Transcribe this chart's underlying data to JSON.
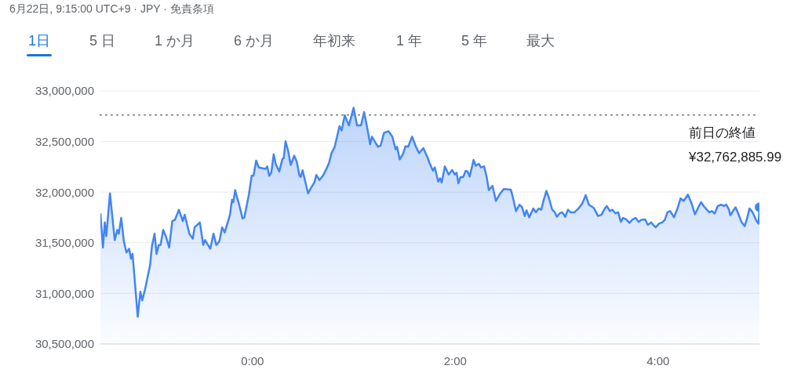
{
  "chart_data": {
    "type": "area",
    "title": "6月22日, 9:15:00 UTC+9 · JPY · 免責条項",
    "annotations": [
      "1日",
      "5 日",
      "1 か月",
      "6 か月",
      "年初来",
      "1 年",
      "5 年",
      "最大"
    ],
    "xlim": [
      -1.5,
      5.0
    ],
    "xticks": [
      {
        "value": 0,
        "label": "0:00"
      },
      {
        "value": 2,
        "label": "2:00"
      },
      {
        "value": 4,
        "label": "4:00"
      }
    ],
    "ylim": [
      30500000,
      33000000
    ],
    "yticks": [
      {
        "value": 30500000,
        "label": "30,500,000"
      },
      {
        "value": 31000000,
        "label": "31,000,000"
      },
      {
        "value": 31500000,
        "label": "31,500,000"
      },
      {
        "value": 32000000,
        "label": "32,000,000"
      },
      {
        "value": 32500000,
        "label": "32,500,000"
      },
      {
        "value": 33000000,
        "label": "33,000,000"
      }
    ],
    "grid": "y",
    "legend": false,
    "marker": "none",
    "line_style": "solid",
    "ref_lines": [
      {
        "axis": "y",
        "value": 32762885.99,
        "label": "前日の終値 ¥32,762,885.99",
        "color": "#80868b",
        "line_style": "dotted"
      }
    ],
    "series": [
      {
        "color": "#4285f4",
        "x": [
          -1.5,
          -1.475,
          -1.457,
          -1.442,
          -1.406,
          -1.359,
          -1.333,
          -1.318,
          -1.295,
          -1.269,
          -1.243,
          -1.217,
          -1.199,
          -1.183,
          -1.132,
          -1.106,
          -1.088,
          -1.062,
          -1.01,
          -0.992,
          -0.966,
          -0.946,
          -0.925,
          -0.907,
          -0.881,
          -0.855,
          -0.822,
          -0.791,
          -0.765,
          -0.726,
          -0.687,
          -0.669,
          -0.623,
          -0.589,
          -0.571,
          -0.519,
          -0.486,
          -0.468,
          -0.416,
          -0.385,
          -0.357,
          -0.326,
          -0.3,
          -0.274,
          -0.222,
          -0.202,
          -0.189,
          -0.171,
          -0.15,
          -0.132,
          -0.098,
          -0.08,
          -0.036,
          -0.008,
          0.01,
          0.036,
          0.062,
          0.101,
          0.127,
          0.145,
          0.165,
          0.186,
          0.209,
          0.23,
          0.264,
          0.295,
          0.308,
          0.326,
          0.351,
          0.377,
          0.411,
          0.437,
          0.463,
          0.475,
          0.494,
          0.548,
          0.574,
          0.61,
          0.63,
          0.661,
          0.695,
          0.729,
          0.754,
          0.78,
          0.811,
          0.858,
          0.879,
          0.91,
          0.951,
          0.997,
          1.031,
          1.07,
          1.101,
          1.134,
          1.16,
          1.178,
          1.238,
          1.264,
          1.297,
          1.341,
          1.38,
          1.411,
          1.426,
          1.452,
          1.483,
          1.509,
          1.535,
          1.574,
          1.612,
          1.643,
          1.685,
          1.729,
          1.747,
          1.78,
          1.798,
          1.832,
          1.85,
          1.866,
          1.897,
          1.935,
          1.969,
          1.995,
          2.013,
          2.031,
          2.052,
          2.078,
          2.103,
          2.121,
          2.142,
          2.181,
          2.202,
          2.233,
          2.253,
          2.284,
          2.31,
          2.331,
          2.367,
          2.401,
          2.439,
          2.478,
          2.548,
          2.568,
          2.599,
          2.633,
          2.659,
          2.685,
          2.703,
          2.729,
          2.77,
          2.796,
          2.822,
          2.848,
          2.873,
          2.899,
          2.925,
          2.956,
          2.982,
          3.003,
          3.028,
          3.054,
          3.085,
          3.111,
          3.137,
          3.176,
          3.215,
          3.253,
          3.287,
          3.318,
          3.357,
          3.37,
          3.408,
          3.442,
          3.468,
          3.494,
          3.525,
          3.55,
          3.581,
          3.607,
          3.633,
          3.654,
          3.685,
          3.718,
          3.744,
          3.778,
          3.809,
          3.835,
          3.873,
          3.899,
          3.933,
          3.951,
          3.977,
          4.01,
          4.041,
          4.067,
          4.093,
          4.119,
          4.158,
          4.196,
          4.222,
          4.253,
          4.295,
          4.331,
          4.364,
          4.398,
          4.424,
          4.455,
          4.481,
          4.506,
          4.532,
          4.558,
          4.589,
          4.623,
          4.649,
          4.674,
          4.7,
          4.713,
          4.739,
          4.765,
          4.791,
          4.822,
          4.855,
          4.881,
          4.902,
          4.933,
          4.972,
          4.992,
          5.0
        ],
        "values": [
          31789000,
          31453000,
          31701000,
          31565000,
          31988000,
          31527000,
          31627000,
          31590000,
          31746000,
          31515000,
          31403000,
          31440000,
          31341000,
          31390000,
          30769000,
          31017000,
          30930000,
          31030000,
          31279000,
          31465000,
          31590000,
          31390000,
          31478000,
          31478000,
          31627000,
          31565000,
          31453000,
          31714000,
          31726000,
          31826000,
          31714000,
          31776000,
          31590000,
          31540000,
          31652000,
          31701000,
          31478000,
          31527000,
          31440000,
          31590000,
          31478000,
          31515000,
          31652000,
          31602000,
          31776000,
          31925000,
          31901000,
          32020000,
          31938000,
          31876000,
          31739000,
          31751000,
          31975000,
          32162000,
          32162000,
          32311000,
          32244000,
          32236000,
          32229000,
          32254000,
          32162000,
          32194000,
          32373000,
          32274000,
          32204000,
          32328000,
          32336000,
          32502000,
          32410000,
          32269000,
          32361000,
          32299000,
          32162000,
          32149000,
          32216000,
          31988000,
          32037000,
          32095000,
          32169000,
          32119000,
          32162000,
          32229000,
          32286000,
          32386000,
          32448000,
          32652000,
          32609000,
          32759000,
          32659000,
          32833000,
          32659000,
          32659000,
          32791000,
          32622000,
          32473000,
          32547000,
          32448000,
          32460000,
          32585000,
          32602000,
          32547000,
          32423000,
          32448000,
          32323000,
          32373000,
          32453000,
          32448000,
          32547000,
          32448000,
          32386000,
          32435000,
          32336000,
          32286000,
          32211000,
          32244000,
          32104000,
          32137000,
          32095000,
          32254000,
          32174000,
          32219000,
          32174000,
          32192000,
          32087000,
          32149000,
          32149000,
          32211000,
          32204000,
          32154000,
          32318000,
          32261000,
          32279000,
          32244000,
          32254000,
          32149000,
          32020000,
          32062000,
          31913000,
          31980000,
          32030000,
          32025000,
          31950000,
          31813000,
          31876000,
          31851000,
          31764000,
          31821000,
          31751000,
          31838000,
          31801000,
          31838000,
          31826000,
          31925000,
          32012000,
          31938000,
          31826000,
          31801000,
          31756000,
          31789000,
          31801000,
          31756000,
          31826000,
          31801000,
          31801000,
          31838000,
          31888000,
          31970000,
          31876000,
          31851000,
          31838000,
          31764000,
          31776000,
          31826000,
          31863000,
          31813000,
          31826000,
          31789000,
          31801000,
          31706000,
          31746000,
          31731000,
          31696000,
          31726000,
          31746000,
          31706000,
          31726000,
          31731000,
          31677000,
          31701000,
          31677000,
          31652000,
          31689000,
          31701000,
          31726000,
          31801000,
          31813000,
          31751000,
          31851000,
          31938000,
          31913000,
          31975000,
          31888000,
          31781000,
          31851000,
          31901000,
          31856000,
          31826000,
          31801000,
          31813000,
          31789000,
          31863000,
          31876000,
          31863000,
          31876000,
          31826000,
          31771000,
          31813000,
          31851000,
          31789000,
          31706000,
          31664000,
          31751000,
          31838000,
          31801000,
          31714000,
          31689000,
          31851000
        ]
      }
    ]
  }
}
